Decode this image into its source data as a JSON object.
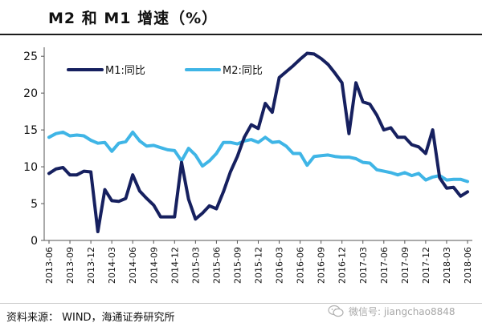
{
  "title": "M2 和 M1 增速（%）",
  "source": "资料来源：  WIND，海通证券研究所",
  "watermark": "微信号: jiangchao8848",
  "colors": {
    "m1": "#16205f",
    "m2": "#3fb5e6",
    "axis": "#555555"
  },
  "chart_data": {
    "type": "line",
    "title": "M2 和 M1 增速（%）",
    "xlabel": "",
    "ylabel": "",
    "ylim": [
      0,
      26
    ],
    "yticks": [
      0,
      5,
      10,
      15,
      20,
      25
    ],
    "legend_position": "top-left",
    "x": [
      "2013-06",
      "2013-07",
      "2013-08",
      "2013-09",
      "2013-10",
      "2013-11",
      "2013-12",
      "2014-01",
      "2014-02",
      "2014-03",
      "2014-04",
      "2014-05",
      "2014-06",
      "2014-07",
      "2014-08",
      "2014-09",
      "2014-10",
      "2014-11",
      "2014-12",
      "2015-01",
      "2015-02",
      "2015-03",
      "2015-04",
      "2015-05",
      "2015-06",
      "2015-07",
      "2015-08",
      "2015-09",
      "2015-10",
      "2015-11",
      "2015-12",
      "2016-01",
      "2016-02",
      "2016-03",
      "2016-04",
      "2016-05",
      "2016-06",
      "2016-07",
      "2016-08",
      "2016-09",
      "2016-10",
      "2016-11",
      "2016-12",
      "2017-01",
      "2017-02",
      "2017-03",
      "2017-04",
      "2017-05",
      "2017-06",
      "2017-07",
      "2017-08",
      "2017-09",
      "2017-10",
      "2017-11",
      "2017-12",
      "2018-01",
      "2018-02",
      "2018-03",
      "2018-04",
      "2018-05",
      "2018-06"
    ],
    "tick_labels": [
      "2013-06",
      "2013-09",
      "2013-12",
      "2014-03",
      "2014-06",
      "2014-09",
      "2014-12",
      "2015-03",
      "2015-06",
      "2015-09",
      "2015-12",
      "2016-03",
      "2016-06",
      "2016-09",
      "2016-12",
      "2017-03",
      "2017-06",
      "2017-09",
      "2017-12",
      "2018-03",
      "2018-06"
    ],
    "series": [
      {
        "name": "M1:同比",
        "values": [
          9.1,
          9.7,
          9.9,
          8.9,
          8.9,
          9.4,
          9.3,
          1.2,
          6.9,
          5.4,
          5.3,
          5.7,
          8.9,
          6.7,
          5.7,
          4.8,
          3.2,
          3.2,
          3.2,
          10.6,
          5.6,
          2.9,
          3.7,
          4.7,
          4.3,
          6.6,
          9.3,
          11.4,
          14.0,
          15.7,
          15.2,
          18.6,
          17.4,
          22.1,
          22.9,
          23.7,
          24.6,
          25.4,
          25.3,
          24.7,
          23.9,
          22.7,
          21.4,
          14.5,
          21.4,
          18.8,
          18.5,
          17.0,
          15.0,
          15.3,
          14.0,
          14.0,
          13.0,
          12.7,
          11.8,
          15.0,
          8.5,
          7.1,
          7.2,
          6.0,
          6.6
        ]
      },
      {
        "name": "M2:同比",
        "values": [
          14.0,
          14.5,
          14.7,
          14.2,
          14.3,
          14.2,
          13.6,
          13.2,
          13.3,
          12.1,
          13.2,
          13.4,
          14.7,
          13.5,
          12.8,
          12.9,
          12.6,
          12.3,
          12.2,
          10.8,
          12.5,
          11.6,
          10.1,
          10.8,
          11.8,
          13.3,
          13.3,
          13.1,
          13.5,
          13.7,
          13.3,
          14.0,
          13.3,
          13.4,
          12.8,
          11.8,
          11.8,
          10.2,
          11.4,
          11.5,
          11.6,
          11.4,
          11.3,
          11.3,
          11.1,
          10.6,
          10.5,
          9.6,
          9.4,
          9.2,
          8.9,
          9.2,
          8.8,
          9.1,
          8.2,
          8.6,
          8.8,
          8.2,
          8.3,
          8.3,
          8.0
        ]
      }
    ]
  }
}
